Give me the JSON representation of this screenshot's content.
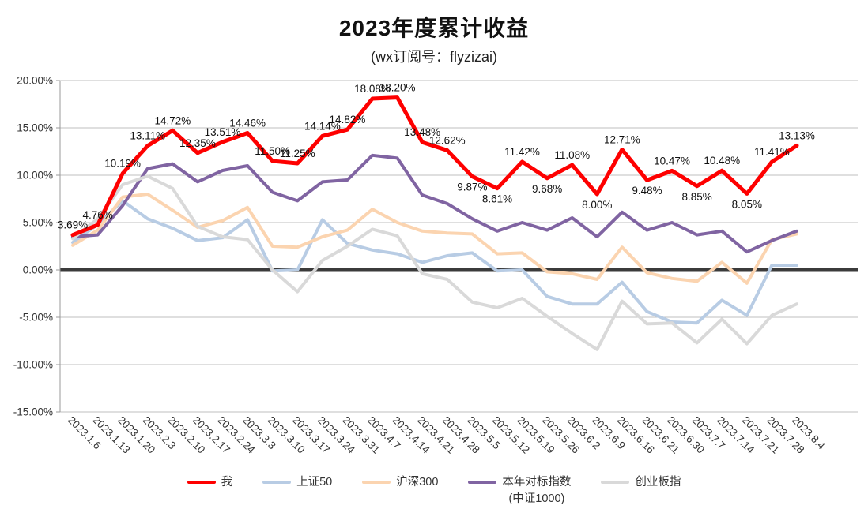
{
  "title": "2023年度累计收益",
  "subtitle": "(wx订阅号：flyzizai)",
  "chart_data": {
    "type": "line",
    "x": [
      "2023.1.6",
      "2023.1.13",
      "2023.1.20",
      "2023.2.3",
      "2023.2.10",
      "2023.2.17",
      "2023.2.24",
      "2023.3.3",
      "2023.3.10",
      "2023.3.17",
      "2023.3.24",
      "2023.3.31",
      "2023.4.7",
      "2023.4.14",
      "2023.4.21",
      "2023.4.28",
      "2023.5.5",
      "2023.5.12",
      "2023.5.19",
      "2023.5.26",
      "2023.6.2",
      "2023.6.9",
      "2023.6.16",
      "2023.6.21",
      "2023.6.30",
      "2023.7.7",
      "2023.7.14",
      "2023.7.21",
      "2023.7.28",
      "2023.8.4"
    ],
    "series": [
      {
        "key": "me",
        "name": "我",
        "color": "#FE0000",
        "stroke_width": 5,
        "labeled": true,
        "values": [
          3.69,
          4.76,
          10.19,
          13.11,
          14.72,
          12.35,
          13.51,
          14.46,
          11.5,
          11.25,
          14.14,
          14.82,
          18.08,
          18.2,
          13.48,
          12.62,
          9.87,
          8.61,
          11.42,
          9.68,
          11.08,
          8.0,
          12.71,
          9.48,
          10.47,
          8.85,
          10.48,
          8.05,
          11.41,
          13.13
        ]
      },
      {
        "key": "sse50",
        "name": "上证50",
        "color": "#B8CCE4",
        "stroke_width": 4,
        "labeled": false,
        "values": [
          2.9,
          4.8,
          7.3,
          5.4,
          4.4,
          3.1,
          3.4,
          5.3,
          -0.1,
          0.0,
          5.3,
          2.8,
          2.1,
          1.7,
          0.8,
          1.5,
          1.8,
          -0.1,
          0.0,
          -2.8,
          -3.6,
          -3.6,
          -1.3,
          -4.4,
          -5.5,
          -5.6,
          -3.2,
          -4.8,
          0.5,
          0.5
        ]
      },
      {
        "key": "csi300",
        "name": "沪深300",
        "color": "#FBD4B0",
        "stroke_width": 4,
        "labeled": false,
        "values": [
          2.6,
          4.2,
          7.7,
          8.0,
          6.3,
          4.5,
          5.2,
          6.6,
          2.5,
          2.4,
          3.5,
          4.2,
          6.4,
          5.0,
          4.1,
          3.9,
          3.8,
          1.7,
          1.8,
          -0.2,
          -0.4,
          -1.0,
          2.4,
          -0.3,
          -0.9,
          -1.2,
          0.8,
          -1.4,
          3.2,
          3.8
        ]
      },
      {
        "key": "benchmark-csi1000",
        "name": "本年对标指数",
        "name_line2": "(中证1000)",
        "color": "#8064A2",
        "stroke_width": 4,
        "labeled": false,
        "values": [
          3.5,
          3.7,
          6.8,
          10.7,
          11.2,
          9.3,
          10.5,
          11.0,
          8.2,
          7.3,
          9.3,
          9.5,
          12.1,
          11.8,
          7.9,
          7.0,
          5.4,
          4.1,
          5.0,
          4.2,
          5.5,
          3.5,
          6.1,
          4.2,
          5.0,
          3.7,
          4.1,
          1.9,
          3.1,
          4.1
        ]
      },
      {
        "key": "chinext",
        "name": "创业板指",
        "color": "#D9D9D9",
        "stroke_width": 4,
        "labeled": false,
        "values": [
          3.3,
          5.4,
          9.0,
          9.9,
          8.6,
          4.6,
          3.5,
          3.2,
          0.0,
          -2.3,
          1.0,
          2.5,
          4.3,
          3.6,
          -0.4,
          -1.0,
          -3.4,
          -4.0,
          -3.0,
          -4.9,
          -6.7,
          -8.4,
          -3.3,
          -5.7,
          -5.6,
          -7.7,
          -5.2,
          -7.8,
          -4.8,
          -3.6
        ]
      }
    ],
    "ylim": [
      -15,
      20
    ],
    "ytick_labels": [
      "20.00%",
      "15.00%",
      "10.00%",
      "5.00%",
      "0.00%",
      "-5.00%",
      "-10.00%",
      "-15.00%"
    ],
    "ytick_values": [
      20,
      15,
      10,
      5,
      0,
      -5,
      -10,
      -15
    ],
    "grid": true,
    "zero_line": true,
    "legend_position": "bottom",
    "colors": {
      "gridline": "#BFBFBF",
      "zero_line": "#3B3B3B",
      "axis_line": "#9A9A9A",
      "axis_text": "#333333",
      "data_label_text": "#111111"
    }
  }
}
